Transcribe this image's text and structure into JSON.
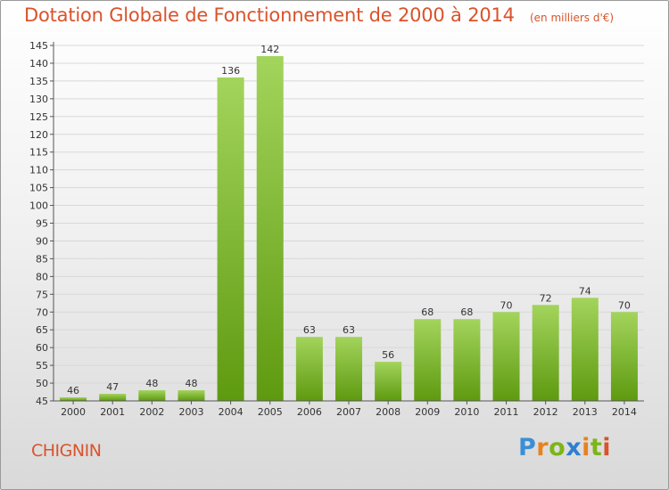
{
  "header": {
    "title": "Dotation Globale de Fonctionnement de 2000 à 2014",
    "unit_note": "(en milliers d'€)"
  },
  "footer": {
    "commune": "CHIGNIN",
    "brand": "Proxiti",
    "brand_colors": [
      "#3a8fd6",
      "#e8821e",
      "#7cb518",
      "#2f7fd0",
      "#e8821e",
      "#7cb518",
      "#d9532c"
    ]
  },
  "colors": {
    "title": "#d9532c",
    "bar_light": "#a3d45c",
    "bar_dark": "#5e9a10",
    "axis": "#555555",
    "grid": "#d8d8d8"
  },
  "chart_data": {
    "type": "bar",
    "title": "Dotation Globale de Fonctionnement de 2000 à 2014",
    "subtitle": "(en milliers d'€)",
    "categories": [
      "2000",
      "2001",
      "2002",
      "2003",
      "2004",
      "2005",
      "2006",
      "2007",
      "2008",
      "2009",
      "2010",
      "2011",
      "2012",
      "2013",
      "2014"
    ],
    "values": [
      46,
      47,
      48,
      48,
      136,
      142,
      63,
      63,
      56,
      68,
      68,
      70,
      72,
      74,
      70
    ],
    "ylim": [
      45,
      145
    ],
    "ytick_step": 5,
    "grid": true,
    "data_labels": true
  }
}
